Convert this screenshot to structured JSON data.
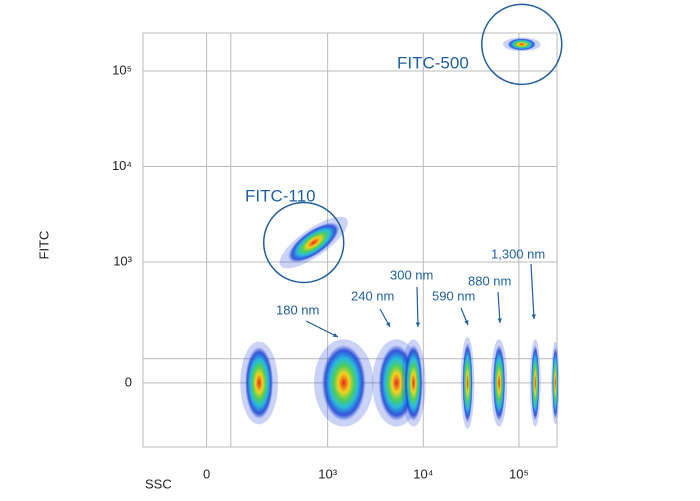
{
  "chart_data": {
    "type": "scatter",
    "xlabel": "SSC",
    "ylabel": "FITC",
    "scale": "biexponential",
    "linear_max": 1000,
    "xlim": [
      -525,
      250000
    ],
    "ylim": [
      -530,
      250000
    ],
    "xticks": [
      0,
      {
        "value": 1000,
        "label": "10³"
      },
      {
        "value": 10000,
        "label": "10⁴"
      },
      {
        "value": 100000,
        "label": "10⁵"
      }
    ],
    "yticks": [
      0,
      {
        "value": 1000,
        "label": "10³"
      },
      {
        "value": 10000,
        "label": "10⁴"
      },
      {
        "value": 100000,
        "label": "10⁵"
      }
    ],
    "xgrid_extra": [
      200
    ],
    "ygrid_extra": [
      200
    ],
    "grid": true,
    "populations": [
      {
        "label": "FITC-110",
        "x": 885,
        "y": 1600,
        "circled": true
      },
      {
        "label": "FITC-500",
        "x": 107000,
        "y": 190000,
        "circled": true
      },
      {
        "x": 434,
        "y": 0
      },
      {
        "label": "180 nm",
        "x": 1474,
        "y": 0
      },
      {
        "label": "240 nm",
        "x": 5250,
        "y": 0
      },
      {
        "label": "300 nm",
        "x": 7900,
        "y": 0
      },
      {
        "label": "590 nm",
        "x": 29000,
        "y": 0
      },
      {
        "label": "880 nm",
        "x": 62000,
        "y": 0
      },
      {
        "label": "1,300 nm",
        "x": 148000,
        "y": 0
      },
      {
        "x": 240000,
        "y": 0
      }
    ]
  }
}
